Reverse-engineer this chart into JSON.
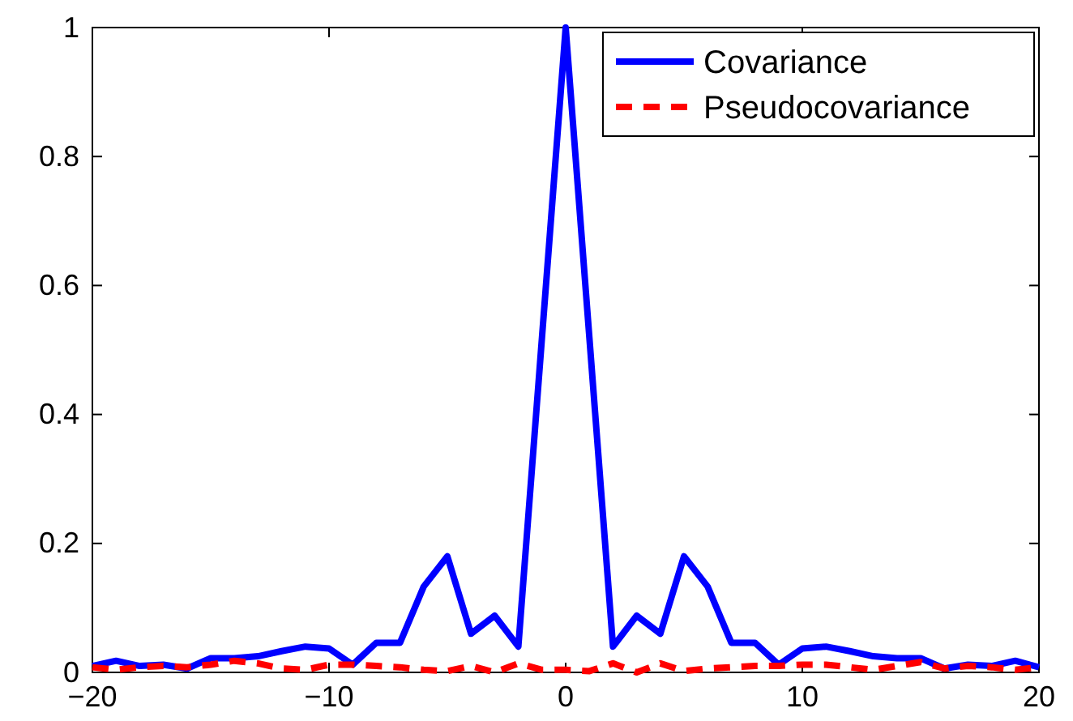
{
  "chart_data": {
    "type": "line",
    "x": [
      -20,
      -19,
      -18,
      -17,
      -16,
      -15,
      -14,
      -13,
      -12,
      -11,
      -10,
      -9,
      -8,
      -7,
      -6,
      -5,
      -4,
      -3,
      -2,
      -1,
      0,
      1,
      2,
      3,
      4,
      5,
      6,
      7,
      8,
      9,
      10,
      11,
      12,
      13,
      14,
      15,
      16,
      17,
      18,
      19,
      20
    ],
    "series": [
      {
        "name": "Covariance",
        "color": "#0000ff",
        "line_style": "solid",
        "values": [
          0.01,
          0.018,
          0.01,
          0.012,
          0.006,
          0.022,
          0.022,
          0.025,
          0.033,
          0.04,
          0.037,
          0.012,
          0.046,
          0.046,
          0.133,
          0.18,
          0.06,
          0.088,
          0.04,
          0.52,
          1,
          0.52,
          0.04,
          0.088,
          0.06,
          0.18,
          0.133,
          0.046,
          0.046,
          0.012,
          0.037,
          0.04,
          0.033,
          0.025,
          0.022,
          0.022,
          0.006,
          0.012,
          0.01,
          0.018,
          0.008
        ]
      },
      {
        "name": "Pseudocovariance",
        "color": "#ff0000",
        "line_style": "dashed",
        "values": [
          0.008,
          0.004,
          0.008,
          0.01,
          0.008,
          0.012,
          0.018,
          0.014,
          0.006,
          0.004,
          0.012,
          0.012,
          0.01,
          0.008,
          0.004,
          0.002,
          0.01,
          0,
          0.014,
          0.004,
          0.004,
          0.002,
          0.014,
          0,
          0.014,
          0.002,
          0.006,
          0.008,
          0.01,
          0.01,
          0.012,
          0.012,
          0.008,
          0.004,
          0.01,
          0.016,
          0.006,
          0.01,
          0.008,
          0.004,
          0.008
        ]
      }
    ],
    "xlim": [
      -20,
      20
    ],
    "xticks": [
      -20,
      -10,
      0,
      10,
      20
    ],
    "ylim": [
      0,
      1
    ],
    "yticks": [
      0,
      0.2,
      0.4,
      0.6,
      0.8,
      1
    ],
    "grid": false,
    "legend": "top right",
    "marker": "none"
  }
}
